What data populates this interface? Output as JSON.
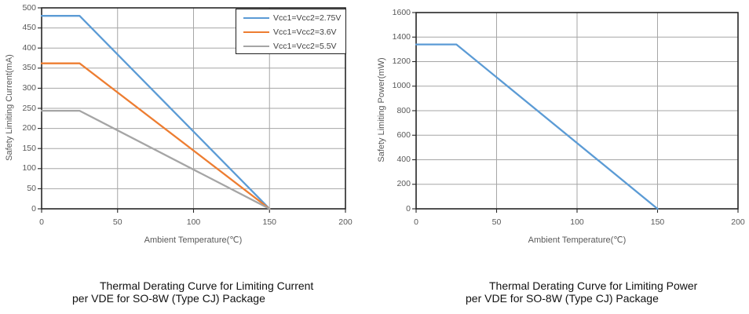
{
  "figure": {
    "background": "#ffffff",
    "grid_color": "#a6a6a6",
    "border_color": "#262626",
    "tick_text_color": "#595959",
    "caption_text_color": "#111111"
  },
  "chart_data": [
    {
      "type": "line",
      "caption_line1": "Thermal Derating Curve for Limiting Current",
      "caption_line2": "per VDE for SO-8W (Type CJ) Package",
      "xlabel": "Ambient Temperature(℃)",
      "ylabel": "Safety Limiting Current(mA)",
      "xlim": [
        0,
        200
      ],
      "ylim": [
        0,
        500
      ],
      "x_ticks": [
        0,
        50,
        100,
        150,
        200
      ],
      "y_ticks": [
        0,
        50,
        100,
        150,
        200,
        250,
        300,
        350,
        400,
        450,
        500
      ],
      "grid": true,
      "legend_position": "top-right",
      "series": [
        {
          "name": "Vcc1=Vcc2=2.75V",
          "color": "#5B9BD5",
          "points": [
            [
              0,
              480
            ],
            [
              25,
              480
            ],
            [
              150,
              0
            ]
          ]
        },
        {
          "name": "Vcc1=Vcc2=3.6V",
          "color": "#ED7D31",
          "points": [
            [
              0,
              362
            ],
            [
              25,
              362
            ],
            [
              150,
              0
            ]
          ]
        },
        {
          "name": "Vcc1=Vcc2=5.5V",
          "color": "#A5A5A5",
          "points": [
            [
              0,
              244
            ],
            [
              25,
              244
            ],
            [
              150,
              0
            ]
          ]
        }
      ]
    },
    {
      "type": "line",
      "caption_line1": "Thermal Derating Curve for Limiting Power",
      "caption_line2": "per VDE for SO-8W (Type CJ) Package",
      "xlabel": "Ambient Temperature(℃)",
      "ylabel": "Safety Limiting Power(mW)",
      "xlim": [
        0,
        200
      ],
      "ylim": [
        0,
        1600
      ],
      "x_ticks": [
        0,
        50,
        100,
        150,
        200
      ],
      "y_ticks": [
        0,
        200,
        400,
        600,
        800,
        1000,
        1200,
        1400,
        1600
      ],
      "grid": true,
      "legend_position": "none",
      "series": [
        {
          "name": "",
          "color": "#5B9BD5",
          "points": [
            [
              0,
              1340
            ],
            [
              25,
              1340
            ],
            [
              150,
              0
            ]
          ]
        }
      ]
    }
  ]
}
